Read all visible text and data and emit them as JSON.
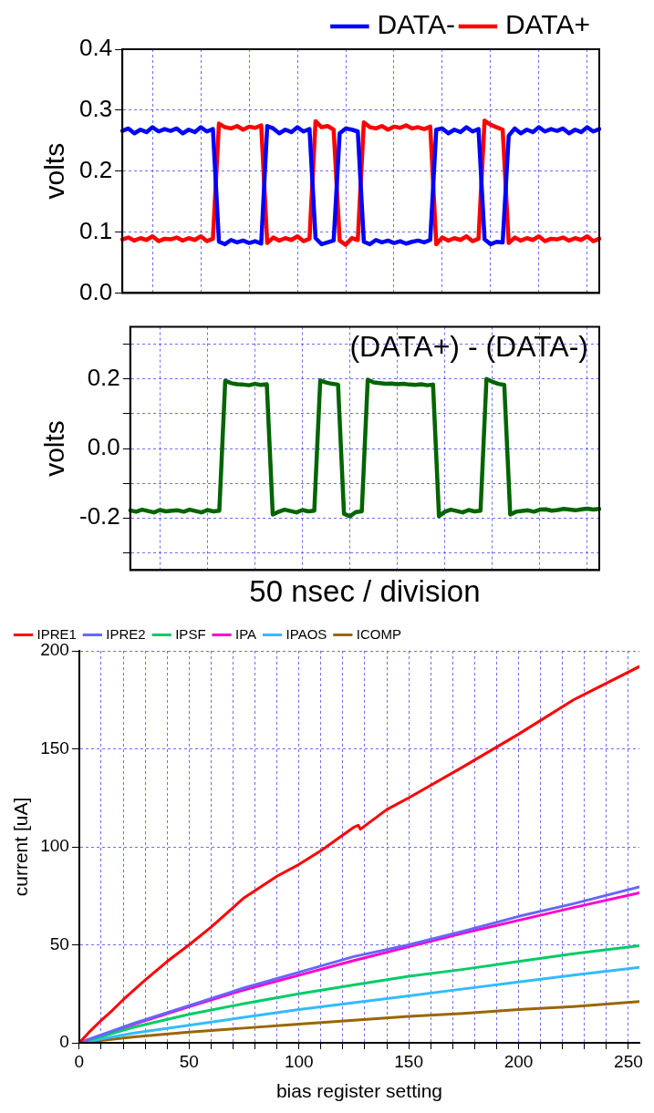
{
  "chart_data": [
    {
      "type": "line",
      "categories": [
        null,
        null,
        null,
        null,
        null,
        null,
        null,
        null,
        null,
        null,
        null,
        null,
        null,
        null,
        null,
        null,
        null,
        null,
        null,
        null,
        null,
        null,
        null,
        null,
        null,
        null,
        null,
        null,
        null,
        null,
        null,
        null,
        null,
        null,
        null,
        null,
        null,
        null,
        null,
        null,
        null,
        null,
        null,
        null,
        null,
        null,
        null,
        null,
        null,
        null,
        null,
        null,
        null,
        null,
        null,
        null,
        null,
        null,
        null,
        null,
        null,
        null,
        null,
        null,
        null,
        null,
        null,
        null,
        null,
        null,
        null,
        null,
        null,
        null,
        null,
        null,
        null,
        null,
        null,
        null
      ],
      "ylabel": "volts",
      "ylim": [
        0,
        0.4
      ],
      "yticks": [
        {
          "value": 0,
          "label": "0.0"
        },
        0.1,
        0.2,
        0.3,
        0.4
      ],
      "grid": true,
      "legend": "top right",
      "tick_labels": "y",
      "marker": "none",
      "series": [
        {
          "name": "DATA-",
          "color": "#0000ff",
          "values": [
            0.266,
            0.27,
            0.262,
            0.268,
            0.264,
            0.272,
            0.265,
            0.269,
            0.266,
            0.27,
            0.262,
            0.268,
            0.264,
            0.272,
            0.265,
            0.269,
            0.084,
            0.08,
            0.087,
            0.083,
            0.086,
            0.082,
            0.085,
            0.081,
            0.274,
            0.27,
            0.262,
            0.268,
            0.264,
            0.272,
            0.265,
            0.269,
            0.09,
            0.08,
            0.083,
            0.086,
            0.262,
            0.27,
            0.268,
            0.265,
            0.084,
            0.08,
            0.087,
            0.083,
            0.086,
            0.082,
            0.085,
            0.081,
            0.084,
            0.086,
            0.083,
            0.087,
            0.268,
            0.27,
            0.262,
            0.268,
            0.264,
            0.272,
            0.265,
            0.269,
            0.088,
            0.08,
            0.084,
            0.083,
            0.258,
            0.27,
            0.262,
            0.268,
            0.264,
            0.272,
            0.265,
            0.269,
            0.266,
            0.27,
            0.262,
            0.268,
            0.264,
            0.272,
            0.265,
            0.269
          ]
        },
        {
          "name": "DATA+",
          "color": "#ff0000",
          "values": [
            0.088,
            0.091,
            0.086,
            0.09,
            0.087,
            0.093,
            0.085,
            0.089,
            0.088,
            0.091,
            0.086,
            0.09,
            0.087,
            0.093,
            0.085,
            0.089,
            0.278,
            0.272,
            0.27,
            0.274,
            0.268,
            0.273,
            0.271,
            0.275,
            0.082,
            0.091,
            0.086,
            0.09,
            0.087,
            0.093,
            0.085,
            0.089,
            0.282,
            0.272,
            0.274,
            0.268,
            0.086,
            0.079,
            0.09,
            0.087,
            0.28,
            0.272,
            0.27,
            0.274,
            0.268,
            0.273,
            0.271,
            0.275,
            0.27,
            0.272,
            0.269,
            0.273,
            0.08,
            0.091,
            0.086,
            0.09,
            0.087,
            0.093,
            0.085,
            0.089,
            0.283,
            0.276,
            0.272,
            0.268,
            0.082,
            0.091,
            0.086,
            0.09,
            0.087,
            0.093,
            0.085,
            0.089,
            0.088,
            0.091,
            0.086,
            0.09,
            0.087,
            0.093,
            0.085,
            0.089
          ]
        }
      ]
    },
    {
      "type": "line",
      "categories": [
        null,
        null,
        null,
        null,
        null,
        null,
        null,
        null,
        null,
        null,
        null,
        null,
        null,
        null,
        null,
        null,
        null,
        null,
        null,
        null,
        null,
        null,
        null,
        null,
        null,
        null,
        null,
        null,
        null,
        null,
        null,
        null,
        null,
        null,
        null,
        null,
        null,
        null,
        null,
        null,
        null,
        null,
        null,
        null,
        null,
        null,
        null,
        null,
        null,
        null,
        null,
        null,
        null,
        null,
        null,
        null,
        null,
        null,
        null,
        null,
        null,
        null,
        null,
        null,
        null,
        null,
        null,
        null,
        null,
        null,
        null,
        null,
        null,
        null,
        null,
        null,
        null,
        null,
        null,
        null
      ],
      "ylabel": "volts",
      "xlabel": "50 nsec / division",
      "ylim": [
        -0.35,
        0.35
      ],
      "yticks": [
        {
          "value": -0.3,
          "label": null
        },
        -0.2,
        {
          "value": -0.1,
          "label": null
        },
        {
          "value": 0,
          "label": "0.0"
        },
        {
          "value": 0.1,
          "label": null
        },
        0.2,
        {
          "value": 0.3,
          "label": null
        }
      ],
      "grid": true,
      "tick_labels": "y",
      "marker": "none",
      "annotations": [
        "(DATA+) - (DATA-)"
      ],
      "series": [
        {
          "color": "#006400",
          "values": [
            -0.178,
            -0.182,
            -0.176,
            -0.18,
            -0.184,
            -0.177,
            -0.181,
            -0.179,
            -0.178,
            -0.182,
            -0.176,
            -0.18,
            -0.184,
            -0.177,
            -0.181,
            -0.179,
            0.195,
            0.188,
            0.185,
            0.184,
            0.182,
            0.186,
            0.183,
            0.185,
            -0.19,
            -0.182,
            -0.176,
            -0.18,
            -0.184,
            -0.177,
            -0.181,
            -0.179,
            0.196,
            0.19,
            0.186,
            0.184,
            -0.188,
            -0.195,
            -0.183,
            -0.181,
            0.198,
            0.19,
            0.188,
            0.186,
            0.187,
            0.185,
            0.186,
            0.184,
            0.183,
            0.185,
            0.182,
            0.184,
            -0.195,
            -0.182,
            -0.176,
            -0.18,
            -0.184,
            -0.177,
            -0.181,
            -0.179,
            0.2,
            0.192,
            0.186,
            0.183,
            -0.19,
            -0.182,
            -0.18,
            -0.178,
            -0.182,
            -0.176,
            -0.175,
            -0.179,
            -0.177,
            -0.174,
            -0.176,
            -0.178,
            -0.175,
            -0.173,
            -0.176,
            -0.174
          ]
        }
      ]
    },
    {
      "type": "line",
      "xlabel": "bias register setting",
      "ylabel": "current [uA]",
      "xlim": [
        0,
        255
      ],
      "xticks": [
        0,
        {
          "value": 10,
          "label": null
        },
        {
          "value": 20,
          "label": null
        },
        {
          "value": 30,
          "label": null
        },
        {
          "value": 40,
          "label": null
        },
        50,
        {
          "value": 60,
          "label": null
        },
        {
          "value": 70,
          "label": null
        },
        {
          "value": 80,
          "label": null
        },
        {
          "value": 90,
          "label": null
        },
        100,
        {
          "value": 110,
          "label": null
        },
        {
          "value": 120,
          "label": null
        },
        {
          "value": 130,
          "label": null
        },
        {
          "value": 140,
          "label": null
        },
        150,
        {
          "value": 160,
          "label": null
        },
        {
          "value": 170,
          "label": null
        },
        {
          "value": 180,
          "label": null
        },
        {
          "value": 190,
          "label": null
        },
        200,
        {
          "value": 210,
          "label": null
        },
        {
          "value": 220,
          "label": null
        },
        {
          "value": 230,
          "label": null
        },
        {
          "value": 240,
          "label": null
        },
        250
      ],
      "ylim": [
        0,
        200
      ],
      "yticks": [
        0,
        50,
        100,
        150,
        200
      ],
      "grid": true,
      "legend": "top left",
      "marker": "none",
      "series": [
        {
          "name": "IPRE1",
          "color": "#ff0000",
          "x": [
            0,
            5,
            10,
            15,
            20,
            30,
            40,
            50,
            60,
            75,
            90,
            100,
            110,
            125,
            127,
            128,
            140,
            150,
            175,
            200,
            225,
            255
          ],
          "values": [
            0,
            6,
            11.5,
            16.5,
            22,
            32,
            41.5,
            50,
            59,
            74,
            85,
            91,
            98,
            110,
            111,
            109,
            119,
            125,
            141,
            157.5,
            175,
            192
          ]
        },
        {
          "name": "IPRE2",
          "color": "#6666ff",
          "x": [
            0,
            25,
            50,
            75,
            100,
            125,
            150,
            175,
            200,
            225,
            255
          ],
          "values": [
            0,
            10,
            19,
            28,
            36,
            44,
            50,
            57,
            64.5,
            71,
            79.5
          ]
        },
        {
          "name": "IPSF",
          "color": "#00cc66",
          "x": [
            0,
            25,
            50,
            75,
            100,
            125,
            150,
            175,
            200,
            225,
            255
          ],
          "values": [
            0,
            8,
            14.5,
            20,
            25,
            29.5,
            34,
            37.5,
            41.5,
            45.5,
            49.5
          ]
        },
        {
          "name": "IPA",
          "color": "#ff00cc",
          "x": [
            0,
            25,
            50,
            75,
            100,
            125,
            150,
            175,
            200,
            225,
            255
          ],
          "values": [
            0,
            9.5,
            18.5,
            27,
            34.5,
            42,
            49,
            56,
            62.5,
            69,
            76.5
          ]
        },
        {
          "name": "IPAOS",
          "color": "#33bbff",
          "x": [
            0,
            25,
            50,
            75,
            100,
            125,
            150,
            175,
            200,
            225,
            255
          ],
          "values": [
            0,
            5,
            9,
            13,
            17,
            20.5,
            24,
            27.5,
            31,
            34.5,
            38.5
          ]
        },
        {
          "name": "ICOMP",
          "color": "#996600",
          "x": [
            0,
            25,
            50,
            75,
            100,
            125,
            150,
            175,
            200,
            225,
            255
          ],
          "values": [
            0,
            3,
            5.5,
            7.5,
            9.5,
            11.5,
            13.5,
            15,
            17,
            18.5,
            21
          ]
        }
      ]
    }
  ]
}
